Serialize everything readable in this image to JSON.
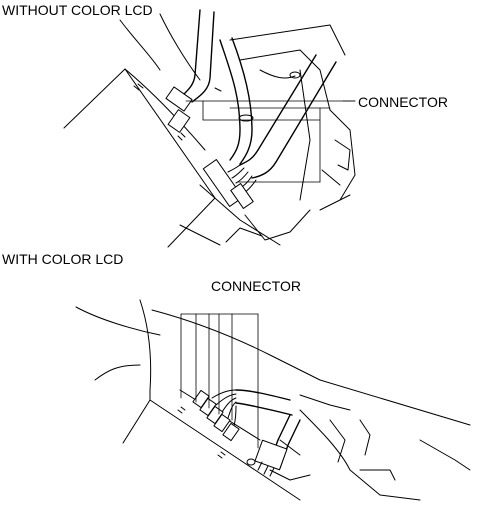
{
  "labels": {
    "without_title": "WITHOUT COLOR LCD",
    "without_connector": "CONNECTOR",
    "with_title": "WITH COLOR LCD",
    "with_connector": "CONNECTOR"
  }
}
